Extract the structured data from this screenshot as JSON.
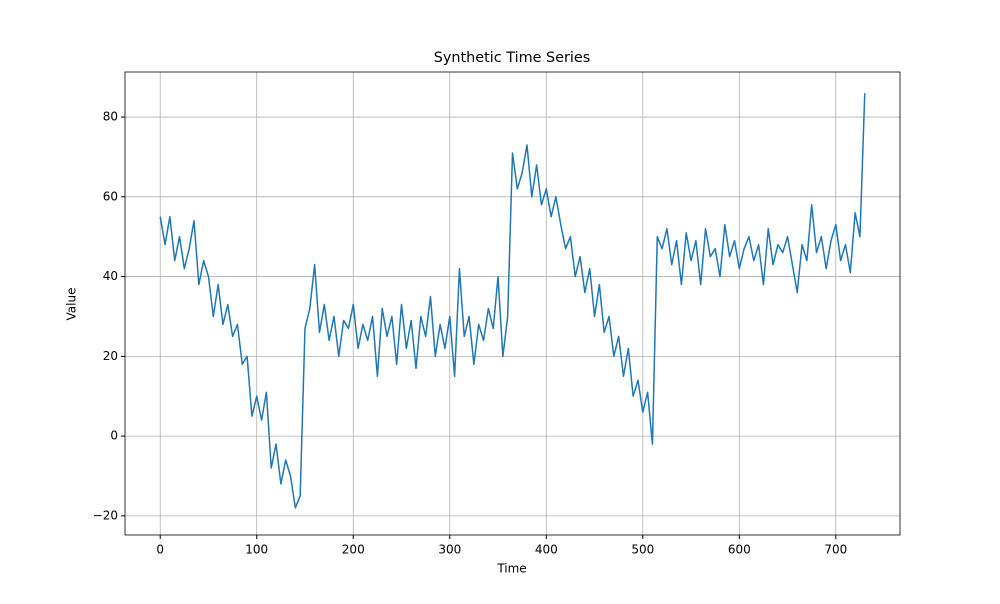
{
  "chart_data": {
    "type": "line",
    "title": "Synthetic Time Series",
    "x_label": "Time",
    "y_label": "Value",
    "x": [
      0,
      5,
      10,
      15,
      20,
      25,
      30,
      35,
      40,
      45,
      50,
      55,
      60,
      65,
      70,
      75,
      80,
      85,
      90,
      95,
      100,
      105,
      110,
      115,
      120,
      125,
      130,
      135,
      140,
      145,
      150,
      155,
      160,
      165,
      170,
      175,
      180,
      185,
      190,
      195,
      200,
      205,
      210,
      215,
      220,
      225,
      230,
      235,
      240,
      245,
      250,
      255,
      260,
      265,
      270,
      275,
      280,
      285,
      290,
      295,
      300,
      305,
      310,
      315,
      320,
      325,
      330,
      335,
      340,
      345,
      350,
      355,
      360,
      365,
      370,
      375,
      380,
      385,
      390,
      395,
      400,
      405,
      410,
      415,
      420,
      425,
      430,
      435,
      440,
      445,
      450,
      455,
      460,
      465,
      470,
      475,
      480,
      485,
      490,
      495,
      500,
      505,
      510,
      515,
      520,
      525,
      530,
      535,
      540,
      545,
      550,
      555,
      560,
      565,
      570,
      575,
      580,
      585,
      590,
      595,
      600,
      605,
      610,
      615,
      620,
      625,
      630,
      635,
      640,
      645,
      650,
      655,
      660,
      665,
      670,
      675,
      680,
      685,
      690,
      695,
      700,
      705,
      710,
      715,
      720,
      725,
      730
    ],
    "series": [
      {
        "name": "Value",
        "color": "#1f77b4",
        "values": [
          55,
          48,
          55,
          44,
          50,
          42,
          47,
          54,
          38,
          44,
          40,
          30,
          38,
          28,
          33,
          25,
          28,
          18,
          20,
          5,
          10,
          4,
          11,
          -8,
          -2,
          -12,
          -6,
          -10,
          -18,
          -15,
          27,
          32,
          43,
          26,
          33,
          24,
          30,
          20,
          29,
          27,
          33,
          22,
          28,
          24,
          30,
          15,
          32,
          25,
          30,
          18,
          33,
          22,
          29,
          17,
          30,
          25,
          35,
          20,
          28,
          22,
          30,
          15,
          42,
          25,
          30,
          18,
          28,
          24,
          32,
          27,
          40,
          20,
          30,
          71,
          62,
          66,
          73,
          60,
          68,
          58,
          62,
          55,
          60,
          53,
          47,
          50,
          40,
          45,
          36,
          42,
          30,
          38,
          26,
          30,
          20,
          25,
          15,
          22,
          10,
          14,
          6,
          11,
          -2,
          50,
          47,
          52,
          43,
          49,
          38,
          51,
          44,
          49,
          38,
          52,
          45,
          47,
          40,
          53,
          45,
          49,
          42,
          47,
          50,
          44,
          48,
          38,
          52,
          43,
          48,
          46,
          50,
          43,
          36,
          48,
          44,
          58,
          46,
          50,
          42,
          49,
          53,
          44,
          48,
          41,
          56,
          50,
          86
        ]
      }
    ],
    "xlim": [
      -36.5,
      766.5
    ],
    "ylim": [
      -24.8,
      91.3
    ],
    "xticks": [
      0,
      100,
      200,
      300,
      400,
      500,
      600,
      700
    ],
    "yticks": [
      {
        "value": -20,
        "label": "−20"
      },
      0,
      20,
      40,
      60,
      80
    ],
    "grid": true
  }
}
